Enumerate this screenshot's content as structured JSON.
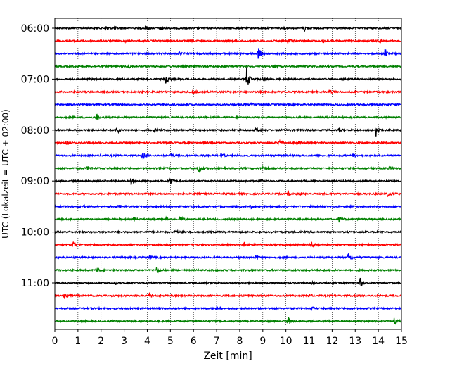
{
  "chart_data": {
    "type": "line",
    "chart_kind": "helicorder",
    "xlabel": "Zeit  [min]",
    "ylabel": "UTC (Lokalzeit = UTC + 02:00)",
    "xlim": [
      0,
      15
    ],
    "x_ticks": [
      0,
      1,
      2,
      3,
      4,
      5,
      6,
      7,
      8,
      9,
      10,
      11,
      12,
      13,
      14,
      15
    ],
    "y_ticks": [
      "06:00",
      "07:00",
      "08:00",
      "09:00",
      "10:00",
      "11:00"
    ],
    "grid": "vertical dotted lines at each minute",
    "trace_colors": [
      "#000000",
      "#ff0000",
      "#0000ff",
      "#008000"
    ],
    "trace_interval_minutes": 15,
    "traces": [
      {
        "start": "06:00",
        "color": "#000000",
        "events": [
          [
            2.2,
            0.35
          ],
          [
            2.6,
            0.25
          ],
          [
            3.9,
            0.4
          ],
          [
            4.6,
            0.45
          ],
          [
            10.8,
            0.55
          ]
        ]
      },
      {
        "start": "06:15",
        "color": "#ff0000",
        "events": [
          [
            3.0,
            0.25
          ],
          [
            10.1,
            0.5
          ],
          [
            11.6,
            0.3
          ],
          [
            14.0,
            0.25
          ]
        ]
      },
      {
        "start": "06:30",
        "color": "#0000ff",
        "events": [
          [
            5.4,
            0.3
          ],
          [
            8.8,
            1.0
          ],
          [
            14.3,
            1.0
          ]
        ]
      },
      {
        "start": "06:45",
        "color": "#008000",
        "events": [
          [
            3.2,
            0.3
          ],
          [
            9.5,
            0.3
          ]
        ]
      },
      {
        "start": "07:00",
        "color": "#000000",
        "events": [
          [
            4.8,
            0.7
          ],
          [
            8.3,
            1.9
          ],
          [
            9.0,
            0.35
          ]
        ]
      },
      {
        "start": "07:15",
        "color": "#ff0000",
        "events": [
          [
            6.0,
            0.3
          ],
          [
            11.9,
            0.35
          ]
        ]
      },
      {
        "start": "07:30",
        "color": "#0000ff",
        "events": [
          [
            8.5,
            0.2
          ]
        ]
      },
      {
        "start": "07:45",
        "color": "#008000",
        "events": [
          [
            1.8,
            0.5
          ]
        ]
      },
      {
        "start": "08:00",
        "color": "#000000",
        "events": [
          [
            2.7,
            0.6
          ],
          [
            4.3,
            0.3
          ],
          [
            8.7,
            0.25
          ],
          [
            12.3,
            0.3
          ],
          [
            13.9,
            1.1
          ]
        ]
      },
      {
        "start": "08:15",
        "color": "#ff0000",
        "events": [
          [
            0.5,
            0.6
          ],
          [
            9.7,
            0.5
          ],
          [
            10.5,
            0.3
          ]
        ]
      },
      {
        "start": "08:30",
        "color": "#0000ff",
        "events": [
          [
            3.8,
            0.5
          ],
          [
            5.0,
            0.35
          ],
          [
            7.2,
            0.3
          ],
          [
            12.9,
            0.3
          ]
        ]
      },
      {
        "start": "08:45",
        "color": "#008000",
        "events": [
          [
            1.4,
            0.3
          ],
          [
            6.2,
            0.75
          ],
          [
            9.0,
            0.25
          ],
          [
            14.5,
            0.25
          ]
        ]
      },
      {
        "start": "09:00",
        "color": "#000000",
        "events": [
          [
            3.3,
            0.55
          ],
          [
            5.0,
            0.7
          ],
          [
            8.9,
            0.25
          ]
        ]
      },
      {
        "start": "09:15",
        "color": "#ff0000",
        "events": [
          [
            10.1,
            0.35
          ],
          [
            10.6,
            0.3
          ],
          [
            14.4,
            0.4
          ]
        ]
      },
      {
        "start": "09:30",
        "color": "#0000ff",
        "events": [
          [
            1.0,
            0.4
          ],
          [
            2.7,
            0.3
          ],
          [
            8.5,
            0.25
          ]
        ]
      },
      {
        "start": "09:45",
        "color": "#008000",
        "events": [
          [
            3.4,
            0.3
          ],
          [
            4.8,
            0.3
          ],
          [
            5.4,
            0.6
          ],
          [
            12.3,
            0.4
          ]
        ]
      },
      {
        "start": "10:00",
        "color": "#000000",
        "events": [
          [
            5.2,
            0.25
          ]
        ]
      },
      {
        "start": "10:15",
        "color": "#ff0000",
        "events": [
          [
            0.8,
            0.5
          ],
          [
            8.2,
            0.35
          ],
          [
            11.1,
            0.35
          ]
        ]
      },
      {
        "start": "10:30",
        "color": "#0000ff",
        "events": [
          [
            4.1,
            0.3
          ],
          [
            8.7,
            0.3
          ],
          [
            12.7,
            0.6
          ]
        ]
      },
      {
        "start": "10:45",
        "color": "#008000",
        "events": [
          [
            1.8,
            0.35
          ],
          [
            4.4,
            0.5
          ]
        ]
      },
      {
        "start": "11:00",
        "color": "#000000",
        "events": [
          [
            2.6,
            0.35
          ],
          [
            11.1,
            0.25
          ],
          [
            13.2,
            0.8
          ]
        ]
      },
      {
        "start": "11:15",
        "color": "#ff0000",
        "events": [
          [
            0.4,
            0.6
          ],
          [
            4.1,
            0.4
          ],
          [
            11.0,
            0.25
          ]
        ]
      },
      {
        "start": "11:30",
        "color": "#0000ff",
        "events": [
          [
            7.0,
            0.25
          ],
          [
            11.1,
            0.2
          ]
        ]
      },
      {
        "start": "11:45",
        "color": "#008000",
        "events": [
          [
            10.1,
            0.7
          ],
          [
            14.7,
            0.6
          ]
        ]
      }
    ]
  }
}
